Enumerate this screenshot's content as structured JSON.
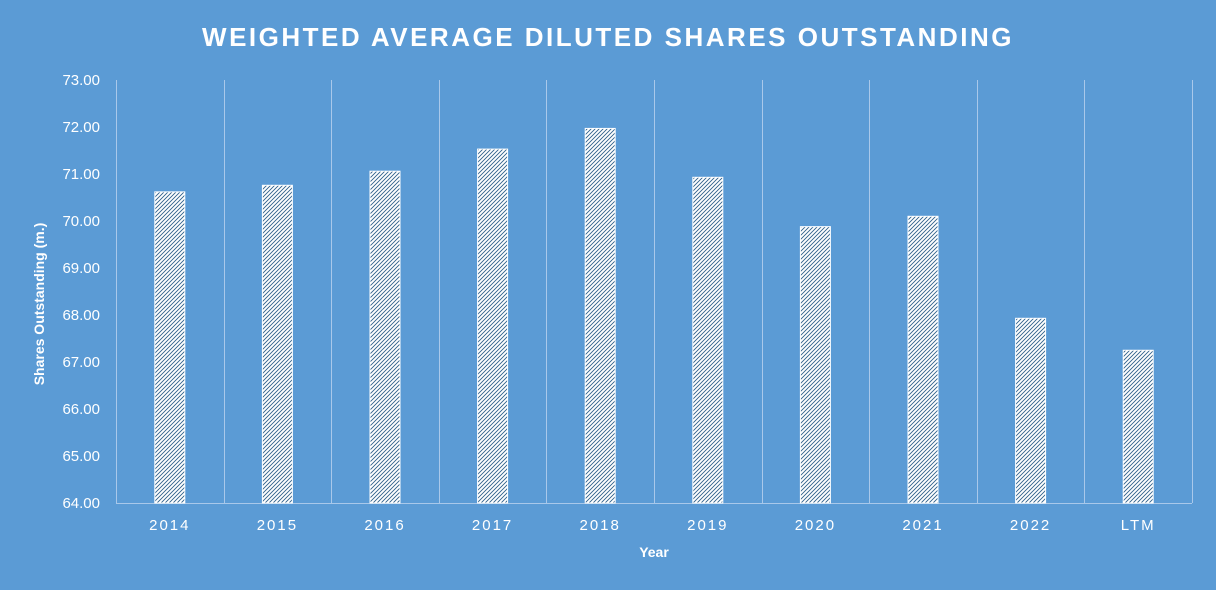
{
  "chart_data": {
    "type": "bar",
    "title": "WEIGHTED AVERAGE DILUTED SHARES OUTSTANDING",
    "xlabel": "Year",
    "ylabel": "Shares Outstanding (m.)",
    "categories": [
      "2014",
      "2015",
      "2016",
      "2017",
      "2018",
      "2019",
      "2020",
      "2021",
      "2022",
      "LTM"
    ],
    "values": [
      70.62,
      70.76,
      71.06,
      71.53,
      71.97,
      70.93,
      69.88,
      70.1,
      67.93,
      67.25
    ],
    "ylim": [
      64,
      73
    ],
    "yticks": [
      "64.00",
      "65.00",
      "66.00",
      "67.00",
      "68.00",
      "69.00",
      "70.00",
      "71.00",
      "72.00",
      "73.00"
    ],
    "grid": "vertical",
    "legend": "none",
    "colors": {
      "background": "#5b9bd5",
      "bar_fill": "#ffffff",
      "bar_pattern": "#2e5f8a",
      "grid": "#a9c8ea",
      "text": "#ffffff"
    }
  }
}
